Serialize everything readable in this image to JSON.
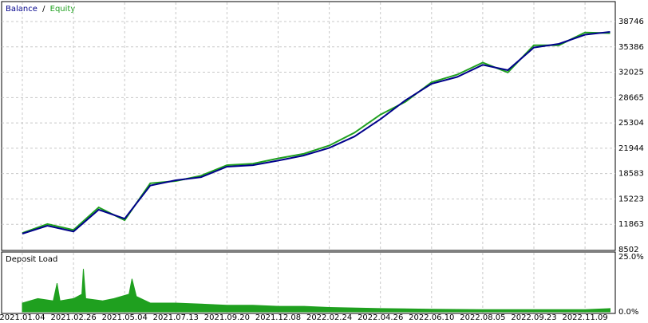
{
  "chart_data": [
    {
      "type": "line",
      "legend_separator": "/",
      "x": [
        "2021.01.04",
        "2021.01.30",
        "2021.02.26",
        "2021.03.31",
        "2021.05.04",
        "2021.06.08",
        "2021.07.13",
        "2021.08.16",
        "2021.09.20",
        "2021.10.30",
        "2021.12.08",
        "2022.01.16",
        "2022.02.24",
        "2022.03.26",
        "2022.04.26",
        "2022.05.18",
        "2022.06.10",
        "2022.07.08",
        "2022.08.05",
        "2022.08.29",
        "2022.09.23",
        "2022.10.16",
        "2022.11.09",
        "2022.12.02"
      ],
      "series": [
        {
          "name": "Balance",
          "color": "#00008b",
          "values": [
            10617,
            11674,
            10900,
            13800,
            12600,
            17000,
            17702,
            18100,
            19500,
            19700,
            20300,
            20980,
            22000,
            23500,
            25800,
            28300,
            30498,
            31400,
            33000,
            32300,
            35300,
            35786,
            37000,
            37372
          ]
        },
        {
          "name": "Equity",
          "color": "#1fa01f",
          "values": [
            10700,
            11900,
            11100,
            14100,
            12400,
            17300,
            17600,
            18300,
            19700,
            19900,
            20600,
            21200,
            22300,
            24000,
            26400,
            28100,
            30700,
            31700,
            33300,
            32000,
            35600,
            35600,
            37300,
            37200
          ]
        }
      ],
      "ylim": [
        8502,
        38746
      ],
      "yticks": [
        8502,
        11863,
        15223,
        18583,
        21944,
        25304,
        28665,
        32025,
        35386,
        38746
      ],
      "xticks": [
        "2021.01.04",
        "2021.02.26",
        "2021.05.04",
        "2021.07.13",
        "2021.09.20",
        "2021.12.08",
        "2022.02.24",
        "2022.04.26",
        "2022.06.10",
        "2022.08.05",
        "2022.09.23",
        "2022.11.09"
      ],
      "grid": true
    },
    {
      "type": "area",
      "title": "Deposit Load",
      "color": "#1fa01f",
      "x": [
        "2021.01.04",
        "2021.01.20",
        "2021.02.05",
        "2021.02.09",
        "2021.02.12",
        "2021.02.26",
        "2021.03.09",
        "2021.03.11",
        "2021.03.14",
        "2021.04.05",
        "2021.04.20",
        "2021.05.10",
        "2021.05.14",
        "2021.05.20",
        "2021.06.08",
        "2021.07.13",
        "2021.08.16",
        "2021.09.20",
        "2021.10.30",
        "2021.12.08",
        "2022.01.16",
        "2022.02.24",
        "2022.04.26",
        "2022.06.10",
        "2022.08.05",
        "2022.09.23",
        "2022.11.09",
        "2022.12.02"
      ],
      "values": [
        4,
        6,
        5,
        13,
        5,
        6,
        8,
        19.5,
        6,
        5,
        6,
        8,
        15,
        7,
        4,
        4,
        3.5,
        3,
        3,
        2.5,
        2.5,
        2,
        1.5,
        1.2,
        1,
        1,
        1,
        1.5
      ],
      "ylim": [
        0,
        25
      ],
      "yticks": [
        {
          "value": 0,
          "label": "0.0%"
        },
        {
          "value": 25,
          "label": "25.0%"
        }
      ]
    }
  ]
}
